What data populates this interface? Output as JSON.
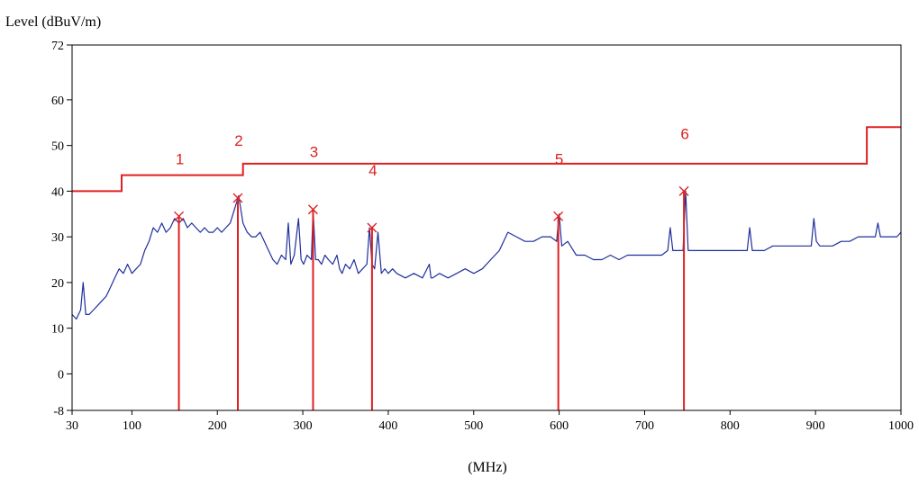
{
  "colors": {
    "trace": "#1f2f9c",
    "limit": "#e02020",
    "marker": "#e02020",
    "frame": "#000000"
  },
  "chart_data": {
    "type": "line",
    "title": "",
    "ylabel": "Level (dBuV/m)",
    "xlabel": "(MHz)",
    "xlim": [
      30,
      1000
    ],
    "ylim": [
      -8,
      72
    ],
    "xticks": [
      30,
      100,
      200,
      300,
      400,
      500,
      600,
      700,
      800,
      900,
      1000
    ],
    "yticks": [
      -8,
      0,
      10,
      20,
      30,
      40,
      50,
      60,
      72
    ],
    "grid": false,
    "legend": "none",
    "series": [
      {
        "role": "trace",
        "x": [
          30,
          35,
          40,
          43,
          46,
          50,
          55,
          60,
          65,
          70,
          75,
          80,
          85,
          90,
          95,
          100,
          105,
          110,
          115,
          120,
          125,
          130,
          135,
          140,
          145,
          150,
          155,
          160,
          165,
          170,
          175,
          180,
          185,
          190,
          195,
          200,
          205,
          210,
          215,
          220,
          225,
          230,
          235,
          240,
          245,
          250,
          255,
          260,
          265,
          270,
          275,
          280,
          283,
          286,
          290,
          295,
          298,
          301,
          305,
          310,
          312,
          315,
          318,
          322,
          326,
          330,
          335,
          340,
          343,
          346,
          350,
          355,
          360,
          365,
          370,
          375,
          378,
          381,
          384,
          388,
          392,
          396,
          400,
          405,
          410,
          420,
          430,
          440,
          448,
          450,
          452,
          460,
          470,
          480,
          490,
          500,
          510,
          520,
          530,
          540,
          550,
          560,
          570,
          580,
          590,
          597,
          600,
          603,
          610,
          620,
          630,
          640,
          650,
          660,
          670,
          680,
          690,
          700,
          710,
          720,
          727,
          730,
          733,
          740,
          745,
          748,
          751,
          755,
          760,
          770,
          780,
          790,
          800,
          810,
          820,
          823,
          826,
          830,
          840,
          850,
          860,
          870,
          880,
          890,
          895,
          898,
          901,
          905,
          910,
          920,
          930,
          940,
          950,
          960,
          965,
          970,
          973,
          976,
          980,
          985,
          990,
          995,
          1000
        ],
        "y": [
          13,
          12,
          14,
          20,
          13,
          13,
          14,
          15,
          16,
          17,
          19,
          21,
          23,
          22,
          24,
          22,
          23,
          24,
          27,
          29,
          32,
          31,
          33,
          31,
          32,
          34,
          33,
          34,
          32,
          33,
          32,
          31,
          32,
          31,
          31,
          32,
          31,
          32,
          33,
          36,
          39,
          33,
          31,
          30,
          30,
          31,
          29,
          27,
          25,
          24,
          26,
          25,
          33,
          24,
          26,
          34,
          25,
          24,
          26,
          25,
          36,
          25,
          25,
          24,
          26,
          25,
          24,
          26,
          23,
          22,
          24,
          23,
          25,
          22,
          23,
          24,
          32,
          24,
          23,
          31,
          22,
          23,
          22,
          23,
          22,
          21,
          22,
          21,
          24,
          21,
          21,
          22,
          21,
          22,
          23,
          22,
          23,
          25,
          27,
          31,
          30,
          29,
          29,
          30,
          30,
          29,
          35,
          28,
          29,
          26,
          26,
          25,
          25,
          26,
          25,
          26,
          26,
          26,
          26,
          26,
          27,
          32,
          27,
          27,
          27,
          40,
          27,
          27,
          27,
          27,
          27,
          27,
          27,
          27,
          27,
          32,
          27,
          27,
          27,
          28,
          28,
          28,
          28,
          28,
          28,
          34,
          29,
          28,
          28,
          28,
          29,
          29,
          30,
          30,
          30,
          30,
          33,
          30,
          30,
          30,
          30,
          30,
          31
        ]
      },
      {
        "role": "limit",
        "x": [
          30,
          88,
          88,
          230,
          230,
          960,
          960,
          1000
        ],
        "y": [
          40,
          40,
          43.5,
          43.5,
          46,
          46,
          54,
          54
        ]
      }
    ],
    "markers": [
      {
        "label": "1",
        "x": 155,
        "y": 34.5
      },
      {
        "label": "2",
        "x": 224,
        "y": 38.5
      },
      {
        "label": "3",
        "x": 312,
        "y": 36
      },
      {
        "label": "4",
        "x": 381,
        "y": 32
      },
      {
        "label": "5",
        "x": 599,
        "y": 34.5
      },
      {
        "label": "6",
        "x": 746,
        "y": 40
      }
    ]
  }
}
